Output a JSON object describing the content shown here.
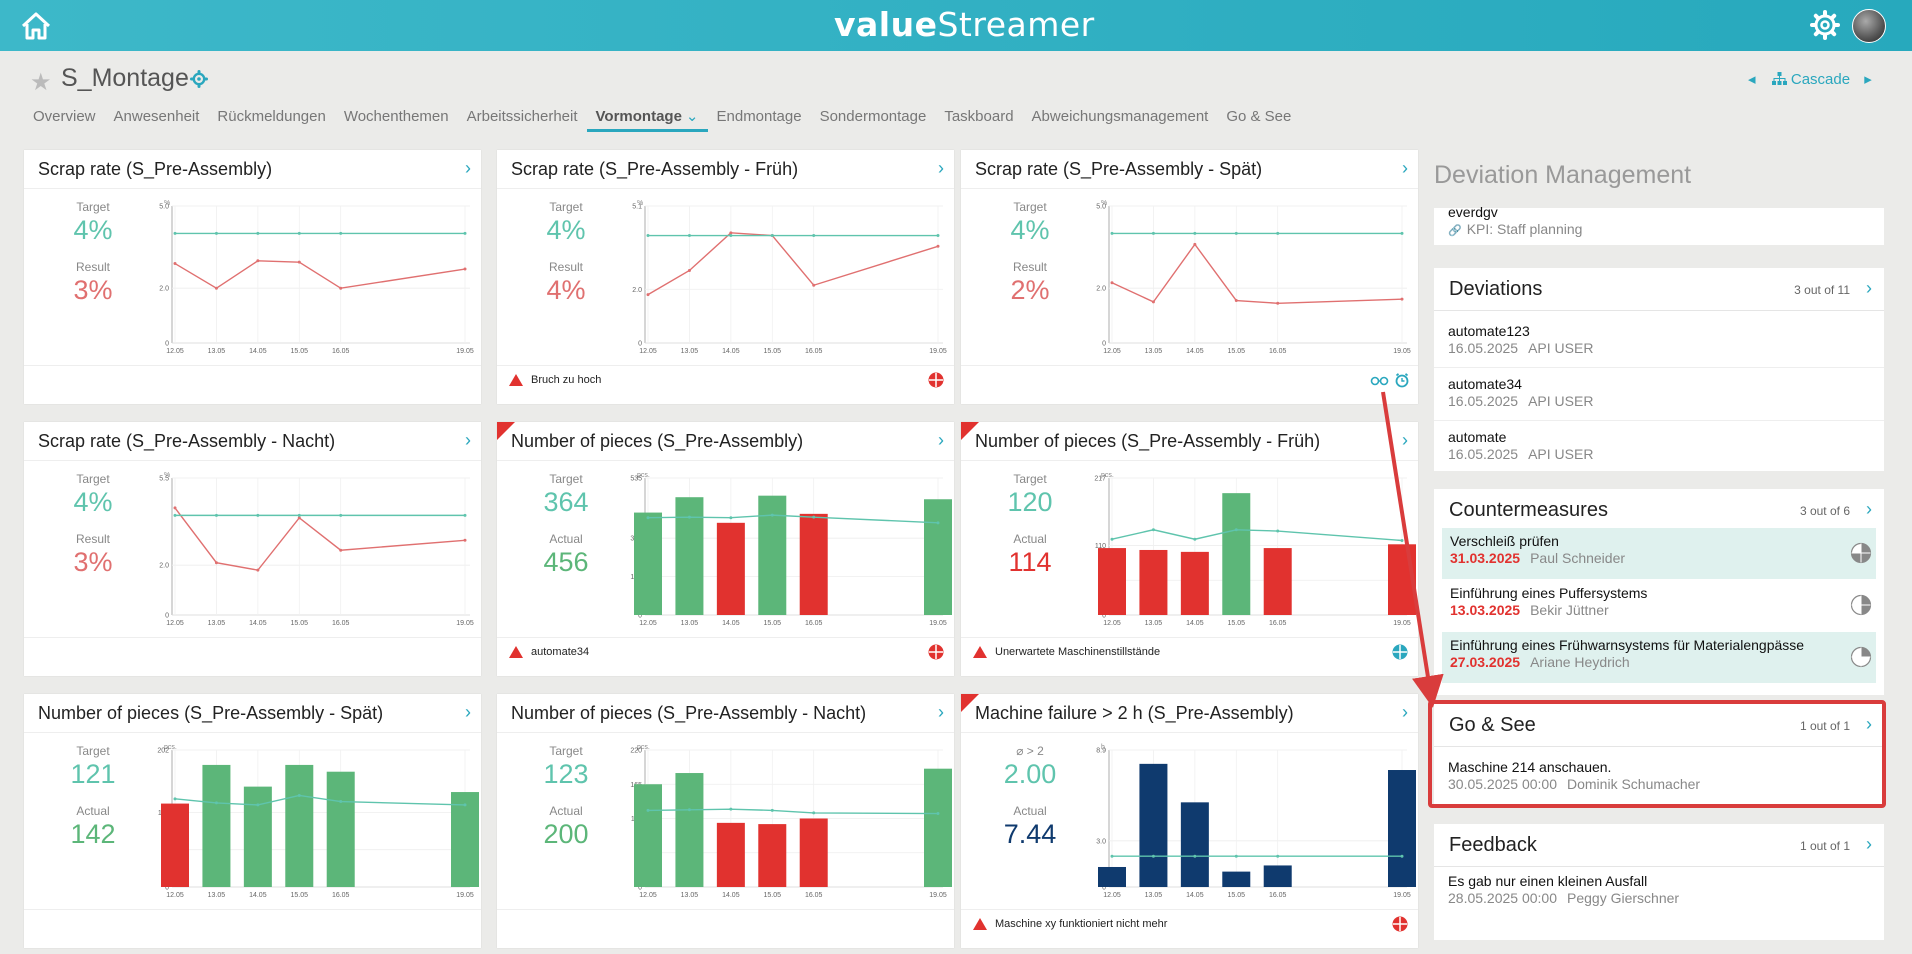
{
  "app": {
    "logo_left": "value",
    "logo_right": "Streamer"
  },
  "header": {
    "title": "S_Montage",
    "cascade_label": "Cascade"
  },
  "tabs": [
    {
      "label": "Overview"
    },
    {
      "label": "Anwesenheit"
    },
    {
      "label": "Rückmeldungen"
    },
    {
      "label": "Wochenthemen"
    },
    {
      "label": "Arbeitssicherheit"
    },
    {
      "label": "Vormontage",
      "active": true
    },
    {
      "label": "Endmontage"
    },
    {
      "label": "Sondermontage"
    },
    {
      "label": "Taskboard"
    },
    {
      "label": "Abweichungsmanagement"
    },
    {
      "label": "Go & See"
    }
  ],
  "colors": {
    "accent": "#2aa7be",
    "target": "#5fc4ad",
    "bad": "#e1322f",
    "good": "#5cb679",
    "navy": "#0f3a6e"
  },
  "cards": [
    {
      "title": "Scrap rate (S_Pre-Assembly)",
      "label1": "Target",
      "value1": "4%",
      "label2": "Result",
      "value2": "3%",
      "value2_color": "#e07070",
      "footer": "",
      "footer_icon": "",
      "corner": false
    },
    {
      "title": "Scrap rate (S_Pre-Assembly - Früh)",
      "label1": "Target",
      "value1": "4%",
      "label2": "Result",
      "value2": "4%",
      "value2_color": "#e07070",
      "footer": "Bruch zu hoch",
      "footer_icon": "red-status-icon",
      "corner": false
    },
    {
      "title": "Scrap rate (S_Pre-Assembly - Spät)",
      "label1": "Target",
      "value1": "4%",
      "label2": "Result",
      "value2": "2%",
      "value2_color": "#e07070",
      "footer": "",
      "footer_icon": "glasses-alarm-icons",
      "corner": false
    },
    {
      "title": "Scrap rate (S_Pre-Assembly - Nacht)",
      "label1": "Target",
      "value1": "4%",
      "label2": "Result",
      "value2": "3%",
      "value2_color": "#e07070",
      "footer": "",
      "footer_icon": "",
      "corner": false
    },
    {
      "title": "Number of pieces (S_Pre-Assembly)",
      "label1": "Target",
      "value1": "364",
      "label2": "Actual",
      "value2": "456",
      "value2_color": "#5cb679",
      "footer": "automate34",
      "footer_icon": "red-status-icon",
      "corner": true
    },
    {
      "title": "Number of pieces (S_Pre-Assembly - Früh)",
      "label1": "Target",
      "value1": "120",
      "label2": "Actual",
      "value2": "114",
      "value2_color": "#e1322f",
      "footer": "Unerwartete Maschinenstillstände",
      "footer_icon": "blue-status-icon",
      "corner": true
    },
    {
      "title": "Number of pieces (S_Pre-Assembly - Spät)",
      "label1": "Target",
      "value1": "121",
      "label2": "Actual",
      "value2": "142",
      "value2_color": "#5cb679",
      "footer": "",
      "footer_icon": "",
      "corner": false
    },
    {
      "title": "Number of pieces (S_Pre-Assembly - Nacht)",
      "label1": "Target",
      "value1": "123",
      "label2": "Actual",
      "value2": "200",
      "value2_color": "#5cb679",
      "footer": "",
      "footer_icon": "",
      "corner": false
    },
    {
      "title": "Machine failure > 2 h (S_Pre-Assembly)",
      "label1": "⌀ > 2",
      "value1": "2.00",
      "label2": "Actual",
      "value2": "7.44",
      "value2_color": "#0f3a6e",
      "footer": "Maschine xy funktioniert nicht mehr",
      "footer_icon": "red-status-icon",
      "corner": true
    }
  ],
  "chart_data": [
    {
      "type": "line",
      "unit": "%",
      "x": [
        "12.05",
        "13.05",
        "14.05",
        "15.05",
        "16.05",
        "19.05"
      ],
      "yticks": [
        "0",
        "2.0",
        "5.0"
      ],
      "ylim": [
        0,
        5.0
      ],
      "target": [
        4,
        4,
        4,
        4,
        4,
        4
      ],
      "series": [
        {
          "values": [
            2.9,
            2.0,
            3.0,
            2.95,
            2.0,
            2.7
          ]
        }
      ]
    },
    {
      "type": "line",
      "unit": "%",
      "x": [
        "12.05",
        "13.05",
        "14.05",
        "15.05",
        "16.05",
        "19.05"
      ],
      "yticks": [
        "0",
        "2.0",
        "5.1"
      ],
      "ylim": [
        0,
        5.1
      ],
      "target": [
        4,
        4,
        4,
        4,
        4,
        4
      ],
      "series": [
        {
          "values": [
            1.8,
            2.7,
            4.1,
            4.0,
            2.15,
            3.6
          ]
        }
      ]
    },
    {
      "type": "line",
      "unit": "%",
      "x": [
        "12.05",
        "13.05",
        "14.05",
        "15.05",
        "16.05",
        "19.05"
      ],
      "yticks": [
        "0",
        "2.0",
        "5.0"
      ],
      "ylim": [
        0,
        5.0
      ],
      "target": [
        4,
        4,
        4,
        4,
        4,
        4
      ],
      "series": [
        {
          "values": [
            2.2,
            1.5,
            3.6,
            1.55,
            1.45,
            1.6
          ]
        }
      ]
    },
    {
      "type": "line",
      "unit": "%",
      "x": [
        "12.05",
        "13.05",
        "14.05",
        "15.05",
        "16.05",
        "19.05"
      ],
      "yticks": [
        "0",
        "2.0",
        "5.5"
      ],
      "ylim": [
        0,
        5.5
      ],
      "target": [
        4,
        4,
        4,
        4,
        4,
        4
      ],
      "series": [
        {
          "values": [
            4.3,
            2.1,
            1.8,
            3.9,
            2.6,
            3.0
          ]
        }
      ]
    },
    {
      "type": "bar",
      "unit": "pcs.",
      "x": [
        "12.05",
        "13.05",
        "14.05",
        "15.05",
        "16.05",
        "19.05"
      ],
      "yticks": [
        "0",
        "150",
        "300",
        "535"
      ],
      "ylim": [
        0,
        535
      ],
      "target": [
        380,
        382,
        380,
        390,
        382,
        360
      ],
      "values": [
        400,
        460,
        360,
        466,
        395,
        452
      ],
      "bar_colors": [
        "#5cb679",
        "#5cb679",
        "#e1322f",
        "#5cb679",
        "#e1322f",
        "#5cb679"
      ]
    },
    {
      "type": "bar",
      "unit": "pcs.",
      "x": [
        "12.05",
        "13.05",
        "14.05",
        "15.05",
        "16.05",
        "19.05"
      ],
      "yticks": [
        "0",
        "55",
        "110",
        "217"
      ],
      "ylim": [
        0,
        217
      ],
      "target": [
        120,
        135,
        120,
        135,
        133,
        118
      ],
      "values": [
        106,
        103,
        100,
        193,
        106,
        112
      ],
      "bar_colors": [
        "#e1322f",
        "#e1322f",
        "#e1322f",
        "#5cb679",
        "#e1322f",
        "#e1322f"
      ]
    },
    {
      "type": "bar",
      "unit": "pcs.",
      "x": [
        "12.05",
        "13.05",
        "14.05",
        "15.05",
        "16.05",
        "19.05"
      ],
      "yticks": [
        "0",
        "55",
        "110",
        "202"
      ],
      "ylim": [
        0,
        202
      ],
      "target": [
        130,
        124,
        121,
        135,
        126,
        121
      ],
      "values": [
        123,
        180,
        148,
        180,
        170,
        140
      ],
      "bar_colors": [
        "#e1322f",
        "#5cb679",
        "#5cb679",
        "#5cb679",
        "#5cb679",
        "#5cb679"
      ]
    },
    {
      "type": "bar",
      "unit": "pcs.",
      "x": [
        "12.05",
        "13.05",
        "14.05",
        "15.05",
        "16.05",
        "19.05"
      ],
      "yticks": [
        "0",
        "55",
        "110",
        "165",
        "220"
      ],
      "ylim": [
        0,
        220
      ],
      "target": [
        123,
        124,
        125,
        123,
        119,
        118
      ],
      "values": [
        165,
        183,
        103,
        101,
        110,
        190
      ],
      "bar_colors": [
        "#5cb679",
        "#5cb679",
        "#e1322f",
        "#e1322f",
        "#e1322f",
        "#5cb679"
      ]
    },
    {
      "type": "bar",
      "unit": "h",
      "x": [
        "12.05",
        "13.05",
        "14.05",
        "15.05",
        "16.05",
        "19.05"
      ],
      "yticks": [
        "0",
        "3.0",
        "8.9"
      ],
      "ylim": [
        0,
        8.9
      ],
      "target": [
        2,
        2,
        2,
        2,
        2,
        2
      ],
      "values": [
        1.3,
        8.0,
        5.5,
        1.0,
        1.4,
        7.6
      ],
      "bar_colors": [
        "#0f3a6e",
        "#0f3a6e",
        "#0f3a6e",
        "#0f3a6e",
        "#0f3a6e",
        "#0f3a6e"
      ]
    }
  ],
  "panel": {
    "title": "Deviation Management",
    "top_item": {
      "title": "everdgv",
      "sub": "KPI: Staff planning"
    },
    "deviations": {
      "title": "Deviations",
      "count": "3 out of 11",
      "items": [
        {
          "title": "automate123",
          "date": "16.05.2025",
          "user": "API USER"
        },
        {
          "title": "automate34",
          "date": "16.05.2025",
          "user": "API USER"
        },
        {
          "title": "automate",
          "date": "16.05.2025",
          "user": "API USER"
        }
      ]
    },
    "countermeasures": {
      "title": "Countermeasures",
      "count": "3 out of 6",
      "items": [
        {
          "title": "Verschleiß prüfen",
          "date": "31.03.2025",
          "user": "Paul Schneider",
          "highlight": true,
          "progress": 0.75
        },
        {
          "title": "Einführung eines Puffersystems",
          "date": "13.03.2025",
          "user": "Bekir Jüttner",
          "highlight": false,
          "progress": 0.5
        },
        {
          "title": "Einführung eines Frühwarnsystems für Materialengpässe",
          "date": "27.03.2025",
          "user": "Ariane Heydrich",
          "highlight": true,
          "progress": 0.25
        }
      ]
    },
    "gosee": {
      "title": "Go & See",
      "count": "1 out of 1",
      "items": [
        {
          "title": "Maschine 214 anschauen.",
          "date": "30.05.2025 00:00",
          "user": "Dominik Schumacher"
        }
      ]
    },
    "feedback": {
      "title": "Feedback",
      "count": "1 out of 1",
      "items": [
        {
          "title": "Es gab nur einen kleinen Ausfall",
          "date": "28.05.2025 00:00",
          "user": "Peggy Gierschner"
        }
      ]
    }
  }
}
